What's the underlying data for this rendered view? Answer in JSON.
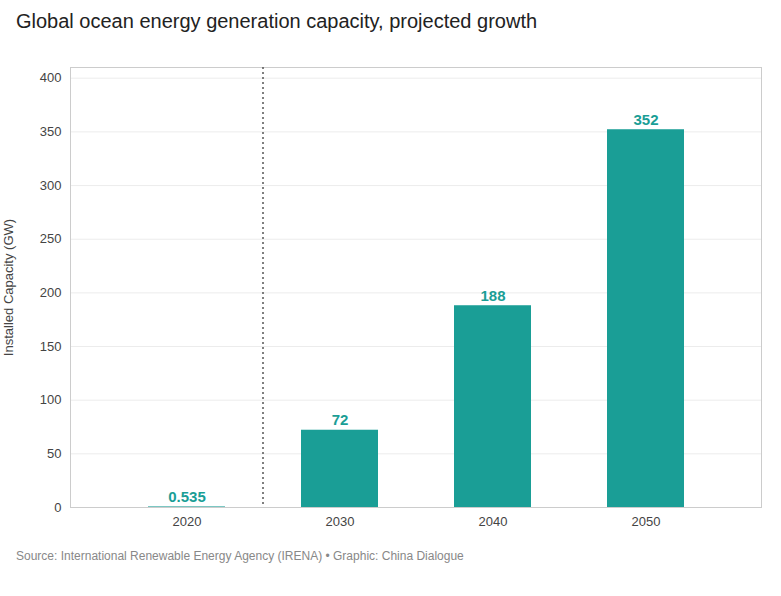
{
  "chart_data": {
    "type": "bar",
    "title": "Global ocean energy generation capacity, projected growth",
    "caption": "Source: International Renewable Energy Agency (IRENA) • Graphic: China Dialogue",
    "categories": [
      "2020",
      "2030",
      "2040",
      "2050"
    ],
    "values": [
      0.535,
      72,
      188,
      352
    ],
    "color": "#1a9e96",
    "ylabel": "Installed Capacity (GW)",
    "ylim": [
      0,
      410
    ],
    "yticks": [
      0,
      50,
      100,
      150,
      200,
      250,
      300,
      350,
      400
    ],
    "grid": true,
    "data_labels": true
  }
}
